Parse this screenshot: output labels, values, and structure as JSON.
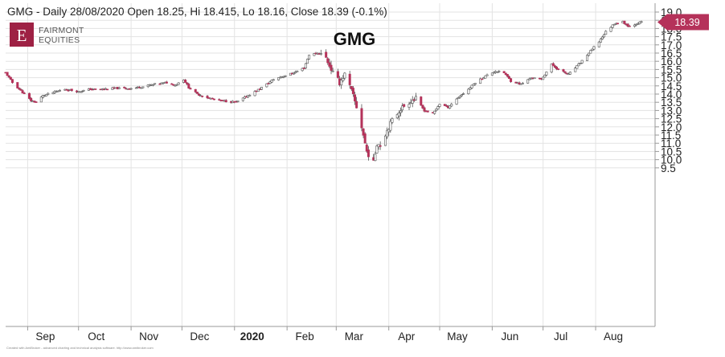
{
  "header": "GMG - Daily 28/08/2020 Open 18.25, Hi 18.415, Lo 18.16, Close 18.39 (-0.1%)",
  "logo": {
    "letter": "E",
    "line1": "FAIRMONT",
    "line2": "EQUITIES"
  },
  "credit": "Created with AmiBroker - advanced charting and technical analysis software. http://www.amibroker.com",
  "colors": {
    "up": "#ffffff",
    "down": "#b5325a",
    "wick": "#555555",
    "grid": "#e3e3e3",
    "accent": "#b5325a"
  },
  "chart_data": {
    "type": "candlestick",
    "title": "GMG",
    "ylim": [
      9.3,
      19.1
    ],
    "y_ticks": [
      "9.5",
      "10.0",
      "10.5",
      "11.0",
      "11.5",
      "12.0",
      "12.5",
      "13.0",
      "13.5",
      "14.0",
      "14.5",
      "15.0",
      "15.5",
      "16.0",
      "16.5",
      "17.0",
      "17.5",
      "18.0",
      "18.5",
      "19.0"
    ],
    "x_ticks": [
      {
        "label": "Sep",
        "date": "2019-09-01",
        "bold": false
      },
      {
        "label": "Oct",
        "date": "2019-10-01",
        "bold": false
      },
      {
        "label": "Nov",
        "date": "2019-11-01",
        "bold": false
      },
      {
        "label": "Dec",
        "date": "2019-12-01",
        "bold": false
      },
      {
        "label": "2020",
        "date": "2020-01-01",
        "bold": true
      },
      {
        "label": "Feb",
        "date": "2020-02-01",
        "bold": false
      },
      {
        "label": "Mar",
        "date": "2020-03-01",
        "bold": false
      },
      {
        "label": "Apr",
        "date": "2020-04-01",
        "bold": false
      },
      {
        "label": "May",
        "date": "2020-05-01",
        "bold": false
      },
      {
        "label": "Jun",
        "date": "2020-06-01",
        "bold": false
      },
      {
        "label": "Jul",
        "date": "2020-07-01",
        "bold": false
      },
      {
        "label": "Aug",
        "date": "2020-08-01",
        "bold": false
      }
    ],
    "last_price": "18.39",
    "last_value": 18.39,
    "close_path": [
      [
        "2019-08-19",
        15.3
      ],
      [
        "2019-08-23",
        14.7
      ],
      [
        "2019-08-28",
        14.2
      ],
      [
        "2019-09-03",
        13.6
      ],
      [
        "2019-09-06",
        13.5
      ],
      [
        "2019-09-10",
        13.9
      ],
      [
        "2019-09-16",
        14.1
      ],
      [
        "2019-09-23",
        14.3
      ],
      [
        "2019-10-01",
        14.15
      ],
      [
        "2019-10-08",
        14.3
      ],
      [
        "2019-10-15",
        14.3
      ],
      [
        "2019-10-22",
        14.35
      ],
      [
        "2019-11-01",
        14.35
      ],
      [
        "2019-11-08",
        14.45
      ],
      [
        "2019-11-15",
        14.6
      ],
      [
        "2019-11-22",
        14.7
      ],
      [
        "2019-11-27",
        14.55
      ],
      [
        "2019-12-02",
        14.9
      ],
      [
        "2019-12-05",
        14.4
      ],
      [
        "2019-12-10",
        14.0
      ],
      [
        "2019-12-17",
        13.75
      ],
      [
        "2019-12-24",
        13.6
      ],
      [
        "2020-01-02",
        13.5
      ],
      [
        "2020-01-08",
        13.85
      ],
      [
        "2020-01-14",
        14.2
      ],
      [
        "2020-01-20",
        14.6
      ],
      [
        "2020-01-24",
        14.9
      ],
      [
        "2020-01-30",
        15.1
      ],
      [
        "2020-02-05",
        15.3
      ],
      [
        "2020-02-11",
        15.6
      ],
      [
        "2020-02-14",
        16.4
      ],
      [
        "2020-02-20",
        16.5
      ],
      [
        "2020-02-24",
        16.2
      ],
      [
        "2020-02-28",
        15.3
      ],
      [
        "2020-03-03",
        14.7
      ],
      [
        "2020-03-06",
        15.2
      ],
      [
        "2020-03-10",
        14.2
      ],
      [
        "2020-03-13",
        13.2
      ],
      [
        "2020-03-16",
        12.0
      ],
      [
        "2020-03-19",
        10.5
      ],
      [
        "2020-03-23",
        9.8
      ],
      [
        "2020-03-25",
        11.0
      ],
      [
        "2020-03-27",
        10.9
      ],
      [
        "2020-03-31",
        11.8
      ],
      [
        "2020-04-03",
        12.4
      ],
      [
        "2020-04-08",
        13.1
      ],
      [
        "2020-04-14",
        13.6
      ],
      [
        "2020-04-17",
        13.7
      ],
      [
        "2020-04-22",
        13.0
      ],
      [
        "2020-04-27",
        12.8
      ],
      [
        "2020-05-01",
        13.4
      ],
      [
        "2020-05-06",
        13.2
      ],
      [
        "2020-05-12",
        13.8
      ],
      [
        "2020-05-18",
        14.3
      ],
      [
        "2020-05-22",
        14.7
      ],
      [
        "2020-05-28",
        15.1
      ],
      [
        "2020-06-03",
        15.4
      ],
      [
        "2020-06-08",
        15.3
      ],
      [
        "2020-06-12",
        14.8
      ],
      [
        "2020-06-18",
        14.6
      ],
      [
        "2020-06-24",
        15.0
      ],
      [
        "2020-06-30",
        14.9
      ],
      [
        "2020-07-06",
        15.8
      ],
      [
        "2020-07-10",
        15.5
      ],
      [
        "2020-07-16",
        15.2
      ],
      [
        "2020-07-22",
        15.8
      ],
      [
        "2020-07-28",
        16.5
      ],
      [
        "2020-08-03",
        17.2
      ],
      [
        "2020-08-07",
        17.8
      ],
      [
        "2020-08-12",
        18.3
      ],
      [
        "2020-08-17",
        18.4
      ],
      [
        "2020-08-21",
        18.1
      ],
      [
        "2020-08-25",
        18.3
      ],
      [
        "2020-08-28",
        18.39
      ]
    ]
  }
}
